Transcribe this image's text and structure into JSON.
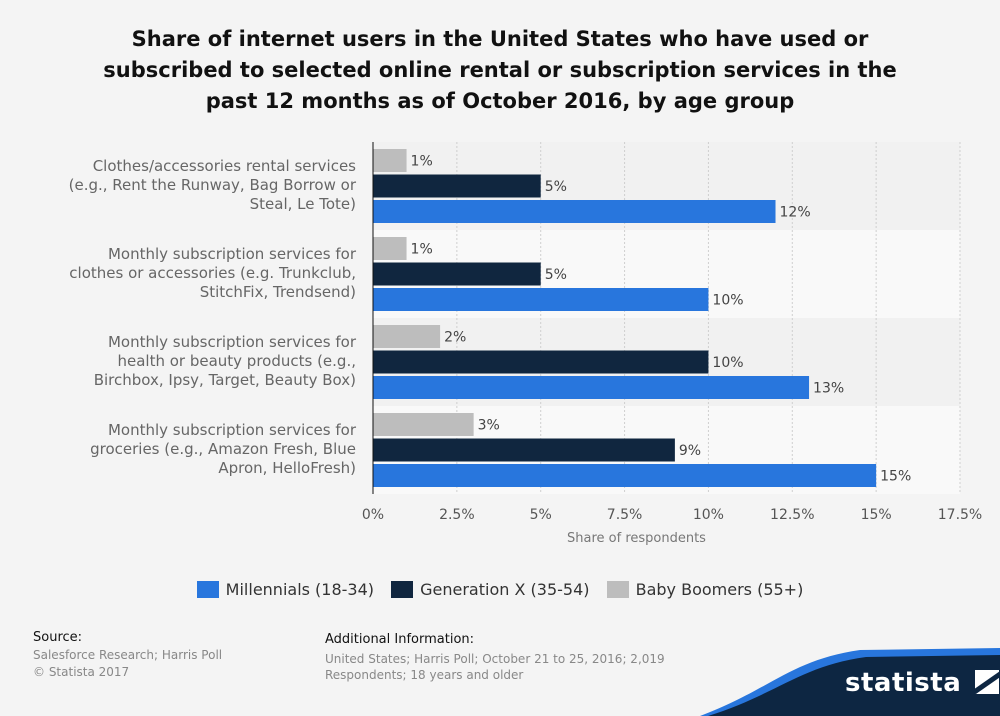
{
  "title_lines": [
    "Share of internet users in the United States who have used or",
    "subscribed to selected online rental or subscription services in the",
    "past 12 months as of October 2016, by age group"
  ],
  "chart_data": {
    "type": "bar",
    "orientation": "horizontal",
    "categories": [
      [
        "Clothes/accessories rental services",
        "(e.g., Rent the Runway, Bag Borrow or",
        "Steal, Le Tote)"
      ],
      [
        "Monthly subscription services for",
        "clothes or accessories (e.g. Trunkclub,",
        "StitchFix, Trendsend)"
      ],
      [
        "Monthly subscription services for",
        "health or beauty products (e.g.,",
        "Birchbox, Ipsy, Target, Beauty Box)"
      ],
      [
        "Monthly subscription services for",
        "groceries (e.g., Amazon Fresh, Blue",
        "Apron, HelloFresh)"
      ]
    ],
    "series": [
      {
        "name": "Baby Boomers (55+)",
        "color": "#bdbdbd",
        "values": [
          1,
          1,
          2,
          3
        ]
      },
      {
        "name": "Generation X (35-54)",
        "color": "#10263f",
        "values": [
          5,
          5,
          10,
          9
        ]
      },
      {
        "name": "Millennials (18-34)",
        "color": "#2876dd",
        "values": [
          12,
          10,
          13,
          15
        ]
      }
    ],
    "legend_order": [
      "Millennials (18-34)",
      "Generation X (35-54)",
      "Baby Boomers (55+)"
    ],
    "xlim": [
      0,
      17.5
    ],
    "xticks": [
      0,
      2.5,
      5,
      7.5,
      10,
      12.5,
      15,
      17.5
    ],
    "xtick_labels": [
      "0%",
      "2.5%",
      "5%",
      "7.5%",
      "10%",
      "12.5%",
      "15%",
      "17.5%"
    ],
    "xlabel": "Share of respondents",
    "value_suffix": "%",
    "grid": true,
    "legend_position": "bottom"
  },
  "source": {
    "heading": "Source:",
    "lines": [
      "Salesforce Research; Harris Poll",
      "© Statista 2017"
    ]
  },
  "additional": {
    "heading": "Additional Information:",
    "text": "United States; Harris Poll; October 21 to 25, 2016; 2,019 Respondents; 18 years and older"
  },
  "brand": "statista"
}
